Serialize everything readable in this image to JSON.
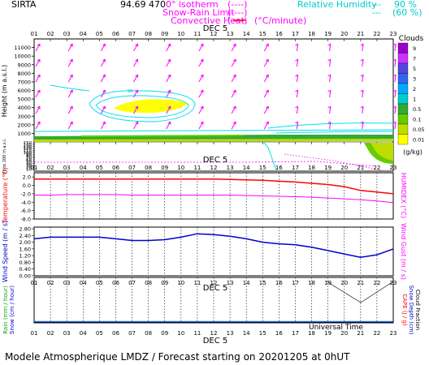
{
  "header": {
    "station": "SIRTA",
    "coords": "94.69",
    "coords_tail": "470",
    "isotherm_label": "0° isotherm",
    "snow_rain_label": "Snow-Rain Limit",
    "convective_label": "Convective Heat.",
    "convective_units": "(°C/minute)",
    "legend_bracket": "(----)",
    "rh_label": "Relative Humidity",
    "rh_90": "90 %",
    "rh_60": "(60 %)",
    "rh_marks": "---"
  },
  "footer": {
    "text": "Modele Atmospherique LMDZ / Forecast starting on 20201205 at 0hUT",
    "universal_time": "Universal Time"
  },
  "colors": {
    "magenta": "#ff00ff",
    "cyan": "#00e0ee",
    "red": "#ff0000",
    "blue": "#0000cc",
    "yellow": "#ffff00",
    "green": "#33aa33",
    "axis": "#000000"
  },
  "chart_data": [
    {
      "type": "heatmap",
      "name_ref": "clouds",
      "day_label": "DEC  5",
      "x": [
        "01",
        "02",
        "03",
        "04",
        "05",
        "06",
        "07",
        "08",
        "09",
        "10",
        "11",
        "12",
        "13",
        "14",
        "15",
        "16",
        "17",
        "18",
        "19",
        "20",
        "21",
        "22",
        "23"
      ],
      "ylabel": "Height  (m a.s.l.)",
      "yticks": [
        1000,
        2000,
        3000,
        4000,
        5000,
        6000,
        7000,
        8000,
        9000,
        10000,
        11000
      ],
      "ylim": [
        0,
        12000
      ],
      "low_ylabel": "Up to 200 m a.s.l.",
      "low_yticks": [
        10,
        20,
        30,
        40,
        50,
        60,
        70,
        80,
        90,
        100,
        110,
        120,
        130,
        140,
        150
      ],
      "colorbar": {
        "title": "Clouds",
        "units": "(g/kg)",
        "ticks": [
          "9",
          "7",
          "5",
          "3",
          "2",
          "1",
          "0.5",
          "0.1",
          "0.05",
          "0.01"
        ],
        "colors": [
          "#9900cc",
          "#cc33ff",
          "#5544dd",
          "#3366ee",
          "#00aaff",
          "#00cccc",
          "#33aa33",
          "#66cc00",
          "#bbdd00",
          "#ffff00"
        ]
      },
      "contour_label": "50"
    },
    {
      "type": "line",
      "name_ref": "temperature",
      "day_label": "DEC  5",
      "ylabel": "Temperature (°C)",
      "y2label": "HUMIDEX (°C)",
      "yticks": [
        "2.0",
        "0.0",
        "-2.0",
        "-4.0",
        "-6.0",
        "-8.0"
      ],
      "ylim": [
        -8,
        3
      ],
      "x": [
        "01",
        "02",
        "03",
        "04",
        "05",
        "06",
        "07",
        "08",
        "09",
        "10",
        "11",
        "12",
        "13",
        "14",
        "15",
        "16",
        "17",
        "18",
        "19",
        "20",
        "21",
        "22",
        "23"
      ],
      "series": [
        {
          "name": "Temperature",
          "values": [
            1.5,
            1.5,
            1.5,
            1.5,
            1.5,
            1.5,
            1.5,
            1.5,
            1.5,
            1.5,
            1.5,
            1.5,
            1.4,
            1.3,
            1.2,
            1.0,
            0.8,
            0.5,
            0.2,
            -0.3,
            -1.2,
            -1.6,
            -2.0
          ]
        },
        {
          "name": "HUMIDEX",
          "values": [
            -2.3,
            -2.3,
            -2.2,
            -2.2,
            -2.2,
            -2.2,
            -2.3,
            -2.3,
            -2.3,
            -2.3,
            -2.3,
            -2.3,
            -2.3,
            -2.4,
            -2.5,
            -2.6,
            -2.7,
            -2.8,
            -3.0,
            -3.2,
            -3.4,
            -3.7,
            -4.1
          ]
        }
      ]
    },
    {
      "type": "line",
      "name_ref": "wind",
      "day_label": "DEC  5",
      "ylabel": "Wind Speed (m / s)",
      "y2label": "Wind Gust (m / s)",
      "yticks": [
        "2.80",
        "2.40",
        "2.00",
        "1.60",
        "1.20",
        "0.80",
        "0.40",
        "0.00"
      ],
      "ylim": [
        0,
        2.8
      ],
      "x": [
        "01",
        "02",
        "03",
        "04",
        "05",
        "06",
        "07",
        "08",
        "09",
        "10",
        "11",
        "12",
        "13",
        "14",
        "15",
        "16",
        "17",
        "18",
        "19",
        "20",
        "21",
        "22",
        "23"
      ],
      "series": [
        {
          "name": "Wind Speed",
          "values": [
            2.2,
            2.3,
            2.3,
            2.3,
            2.3,
            2.2,
            2.1,
            2.1,
            2.15,
            2.3,
            2.5,
            2.45,
            2.35,
            2.2,
            2.0,
            1.9,
            1.85,
            1.7,
            1.5,
            1.3,
            1.1,
            1.25,
            1.6
          ]
        }
      ]
    },
    {
      "type": "line",
      "name_ref": "precip",
      "day_label": "DEC  5",
      "ylabel": "Rain (mm / hour)",
      "ylabel2": "Snow (cm / hour)",
      "y2label": "CAPE (J / g)",
      "y2label_b": "Snow Depth (cm)",
      "y2label_c": "Cloud Fraction",
      "x": [
        "01",
        "02",
        "03",
        "04",
        "05",
        "06",
        "07",
        "08",
        "09",
        "10",
        "11",
        "12",
        "13",
        "14",
        "15",
        "16",
        "17",
        "18",
        "19",
        "20",
        "21",
        "22",
        "23"
      ],
      "series": [
        {
          "name": "CAPE",
          "values": [
            0,
            0,
            0,
            0,
            0,
            0,
            0,
            0,
            0,
            0,
            0,
            0,
            0,
            0,
            0,
            0,
            0,
            0,
            0,
            0,
            0,
            0,
            0
          ]
        }
      ]
    }
  ]
}
